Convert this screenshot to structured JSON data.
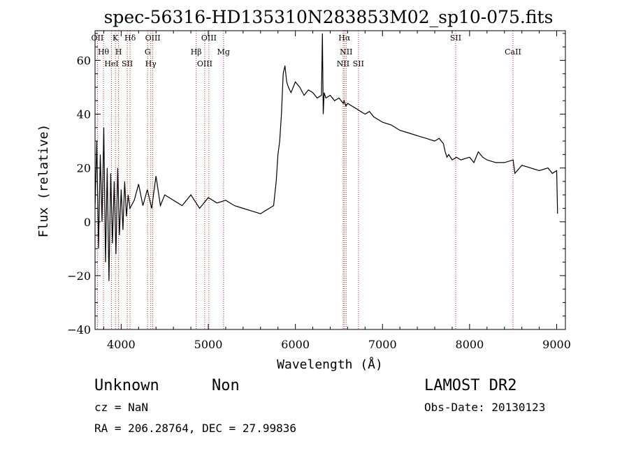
{
  "chart_data": {
    "type": "line",
    "title": "spec-56316-HD135310N283853M02_sp10-075.fits",
    "xlabel": "Wavelength (Å)",
    "ylabel": "Flux (relative)",
    "xlim": [
      3700,
      9100
    ],
    "ylim": [
      -40,
      71
    ],
    "x_ticks": [
      4000,
      5000,
      6000,
      7000,
      8000,
      9000
    ],
    "y_ticks": [
      -40,
      -20,
      0,
      20,
      40,
      60
    ],
    "grid": false,
    "series": [
      {
        "x": [
          3700,
          3720,
          3740,
          3760,
          3780,
          3800,
          3820,
          3840,
          3860,
          3880,
          3900,
          3920,
          3940,
          3960,
          3980,
          4000,
          4020,
          4040,
          4060,
          4080,
          4100,
          4150,
          4200,
          4250,
          4300,
          4350,
          4400,
          4450,
          4500,
          4600,
          4700,
          4800,
          4900,
          5000,
          5100,
          5200,
          5300,
          5400,
          5500,
          5600,
          5650,
          5700,
          5750,
          5780,
          5800,
          5820,
          5840,
          5860,
          5880,
          5900,
          5920,
          5950,
          6000,
          6050,
          6100,
          6150,
          6200,
          6250,
          6300,
          6310,
          6320,
          6330,
          6350,
          6400,
          6450,
          6500,
          6550,
          6560,
          6580,
          6600,
          6650,
          6700,
          6750,
          6800,
          6850,
          6900,
          6950,
          7000,
          7100,
          7200,
          7300,
          7400,
          7500,
          7600,
          7650,
          7700,
          7720,
          7740,
          7760,
          7800,
          7850,
          7900,
          8000,
          8050,
          8100,
          8150,
          8200,
          8300,
          8400,
          8500,
          8520,
          8600,
          8700,
          8800,
          8900,
          8950,
          9000,
          9010
        ],
        "y": [
          5,
          30,
          -10,
          25,
          0,
          35,
          -15,
          20,
          -22,
          18,
          -8,
          15,
          -12,
          20,
          -5,
          12,
          -3,
          15,
          2,
          10,
          5,
          8,
          14,
          6,
          12,
          5,
          17,
          6,
          10,
          8,
          6,
          10,
          5,
          9,
          7,
          8,
          6,
          5,
          4,
          3,
          4,
          5,
          6,
          15,
          25,
          30,
          40,
          55,
          58,
          52,
          50,
          48,
          52,
          50,
          47,
          49,
          48,
          46,
          47,
          70,
          40,
          48,
          46,
          47,
          45,
          46,
          44,
          45,
          43,
          44,
          43,
          42,
          41,
          40,
          41,
          39,
          38,
          37,
          36,
          34,
          33,
          32,
          31,
          30,
          31,
          29,
          26,
          24,
          25,
          23,
          24,
          23,
          24,
          22,
          26,
          24,
          23,
          22,
          22,
          23,
          18,
          21,
          20,
          19,
          20,
          18,
          19,
          3
        ]
      }
    ],
    "lines": [
      {
        "x": 3727,
        "labels": [
          "OII"
        ]
      },
      {
        "x": 3797,
        "labels": [
          "Hθ"
        ]
      },
      {
        "x": 3889,
        "labels": [
          "HeI"
        ]
      },
      {
        "x": 3934,
        "labels": [
          "K"
        ]
      },
      {
        "x": 3970,
        "labels": [
          "H"
        ]
      },
      {
        "x": 4070,
        "labels": [
          "SII"
        ]
      },
      {
        "x": 4102,
        "labels": [
          "Hδ"
        ]
      },
      {
        "x": 4304,
        "labels": [
          "G"
        ]
      },
      {
        "x": 4340,
        "labels": [
          "Hγ"
        ]
      },
      {
        "x": 4363,
        "labels": [
          "OIII"
        ]
      },
      {
        "x": 4861,
        "labels": [
          "Hβ"
        ]
      },
      {
        "x": 4959,
        "labels": [
          "OIII"
        ]
      },
      {
        "x": 5007,
        "labels": [
          "OIII"
        ]
      },
      {
        "x": 5175,
        "labels": [
          "Mg"
        ]
      },
      {
        "x": 6548,
        "labels": [
          "NII"
        ]
      },
      {
        "x": 6563,
        "labels": [
          "Hα"
        ]
      },
      {
        "x": 6583,
        "labels": [
          "NII"
        ]
      },
      {
        "x": 6724,
        "labels": [
          "SII"
        ]
      },
      {
        "x": 7840,
        "labels": [
          "SII"
        ]
      },
      {
        "x": 8498,
        "labels": [
          "CaII"
        ]
      }
    ]
  },
  "info": {
    "object_class": "Unknown",
    "subclass": "Non",
    "survey": "LAMOST DR2",
    "redshift_text": "cz = NaN",
    "obs_date_text": "Obs-Date: 20130123",
    "coords_text": "RA = 206.28764, DEC =  27.99836"
  }
}
